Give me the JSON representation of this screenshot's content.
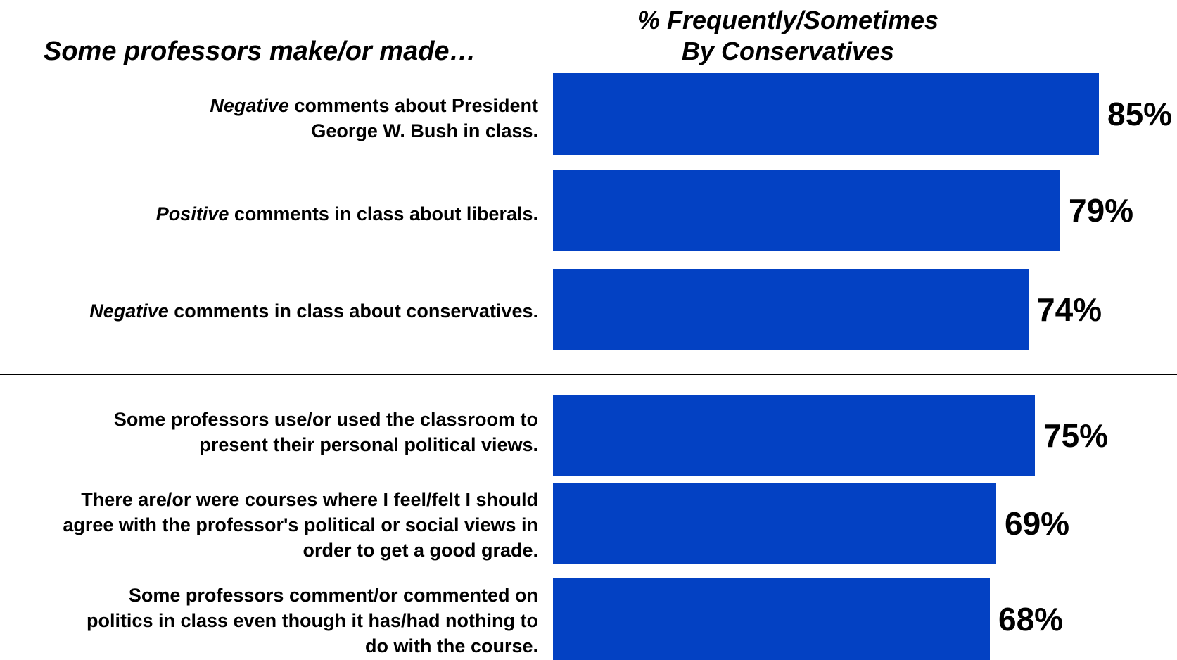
{
  "chart_data": {
    "type": "bar",
    "orientation": "horizontal",
    "title_left": "Some professors make/or made…",
    "title_right_lines": [
      "% Frequently/Sometimes",
      "By Conservatives"
    ],
    "bar_color": "#0341c3",
    "xlim": [
      0,
      100
    ],
    "categories": [
      {
        "lines": [
          [
            {
              "text": "Negative",
              "italic": true
            },
            {
              "text": " comments about President"
            }
          ],
          [
            {
              "text": "George W. Bush in class."
            }
          ]
        ]
      },
      {
        "lines": [
          [
            {
              "text": "Positive",
              "italic": true
            },
            {
              "text": " comments in class about liberals."
            }
          ]
        ]
      },
      {
        "lines": [
          [
            {
              "text": "Negative",
              "italic": true
            },
            {
              "text": " comments in class about conservatives."
            }
          ]
        ]
      },
      {
        "lines": [
          [
            {
              "text": "Some professors use/or used the classroom to"
            }
          ],
          [
            {
              "text": "present their personal political views."
            }
          ]
        ]
      },
      {
        "lines": [
          [
            {
              "text": "There are/or were courses where I feel/felt I should"
            }
          ],
          [
            {
              "text": "agree with the professor's political or social views in"
            }
          ],
          [
            {
              "text": "order to get a good grade."
            }
          ]
        ]
      },
      {
        "lines": [
          [
            {
              "text": "Some professors comment/or commented on"
            }
          ],
          [
            {
              "text": "politics in class even though it has/had nothing to"
            }
          ],
          [
            {
              "text": "do with the course."
            }
          ]
        ]
      }
    ],
    "values": [
      85,
      79,
      74,
      75,
      69,
      68
    ],
    "value_labels": [
      "85%",
      "79%",
      "74%",
      "75%",
      "69%",
      "68%"
    ],
    "legend": "none",
    "grid": false
  }
}
